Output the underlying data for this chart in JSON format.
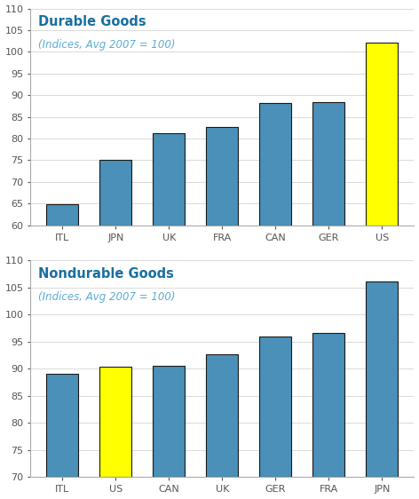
{
  "chart1": {
    "title": "Durable Goods",
    "subtitle": "(Indices, Avg 2007 = 100)",
    "categories": [
      "ITL",
      "JPN",
      "UK",
      "FRA",
      "CAN",
      "GER",
      "US"
    ],
    "values": [
      64.8,
      75.0,
      81.3,
      82.7,
      88.2,
      88.5,
      102.2
    ],
    "colors": [
      "#4a90b8",
      "#4a90b8",
      "#4a90b8",
      "#4a90b8",
      "#4a90b8",
      "#4a90b8",
      "#ffff00"
    ],
    "ylim": [
      60,
      110
    ],
    "yticks": [
      60,
      65,
      70,
      75,
      80,
      85,
      90,
      95,
      100,
      105,
      110
    ]
  },
  "chart2": {
    "title": "Nondurable Goods",
    "subtitle": "(Indices, Avg 2007 = 100)",
    "categories": [
      "ITL",
      "US",
      "CAN",
      "UK",
      "GER",
      "FRA",
      "JPN"
    ],
    "values": [
      89.0,
      90.4,
      90.6,
      92.7,
      96.0,
      96.6,
      106.1
    ],
    "colors": [
      "#4a90b8",
      "#ffff00",
      "#4a90b8",
      "#4a90b8",
      "#4a90b8",
      "#4a90b8",
      "#4a90b8"
    ],
    "ylim": [
      70,
      110
    ],
    "yticks": [
      70,
      75,
      80,
      85,
      90,
      95,
      100,
      105,
      110
    ]
  },
  "bar_edgecolor": "#1a1a1a",
  "bar_linewidth": 0.8,
  "title_color": "#1a6fa0",
  "subtitle_color": "#5bacd4",
  "title_fontsize": 10.5,
  "subtitle_fontsize": 8.5,
  "tick_fontsize": 8,
  "axis_color": "#aaaaaa",
  "bg_color": "#ffffff"
}
